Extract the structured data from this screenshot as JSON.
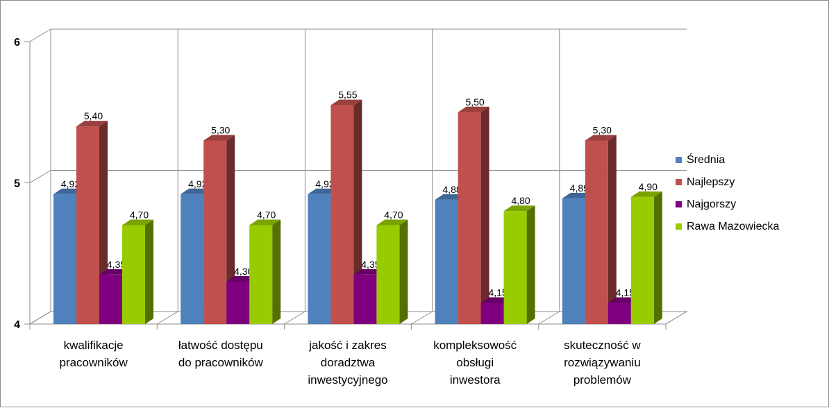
{
  "chart_data": {
    "type": "bar",
    "categories": [
      [
        "kwalifikacje",
        "pracowników"
      ],
      [
        "łatwość dostępu",
        "do pracowników"
      ],
      [
        "jakość i zakres",
        "doradztwa",
        "inwestycyjnego"
      ],
      [
        "kompleksowość",
        "obsługi",
        "inwestora"
      ],
      [
        "skuteczność w",
        "rozwiązywaniu",
        "problemów"
      ]
    ],
    "series": [
      {
        "name": "Średnia",
        "color": "#4f81bd",
        "values": [
          4.92,
          4.92,
          4.92,
          4.88,
          4.89
        ],
        "labels": [
          "4,92",
          "4,92",
          "4,92",
          "4,88",
          "4,89"
        ]
      },
      {
        "name": "Najlepszy",
        "color": "#c0504d",
        "values": [
          5.4,
          5.3,
          5.55,
          5.5,
          5.3
        ],
        "labels": [
          "5,40",
          "5,30",
          "5,55",
          "5,50",
          "5,30"
        ]
      },
      {
        "name": "Najgorszy",
        "color": "#7f007f",
        "values": [
          4.35,
          4.3,
          4.35,
          4.15,
          4.15
        ],
        "labels": [
          "4,35",
          "4,30",
          "4,35",
          "4,15",
          "4,15"
        ]
      },
      {
        "name": "Rawa Mazowiecka",
        "color": "#99cc00",
        "values": [
          4.7,
          4.7,
          4.7,
          4.8,
          4.9
        ],
        "labels": [
          "4,70",
          "4,70",
          "4,70",
          "4,80",
          "4,90"
        ]
      }
    ],
    "ylim": [
      4,
      6
    ],
    "yticks": [
      4,
      5,
      6
    ],
    "ytick_labels": [
      "4",
      "5",
      "6"
    ],
    "grid": true,
    "legend": "right",
    "title": "",
    "xlabel": "",
    "ylabel": ""
  }
}
